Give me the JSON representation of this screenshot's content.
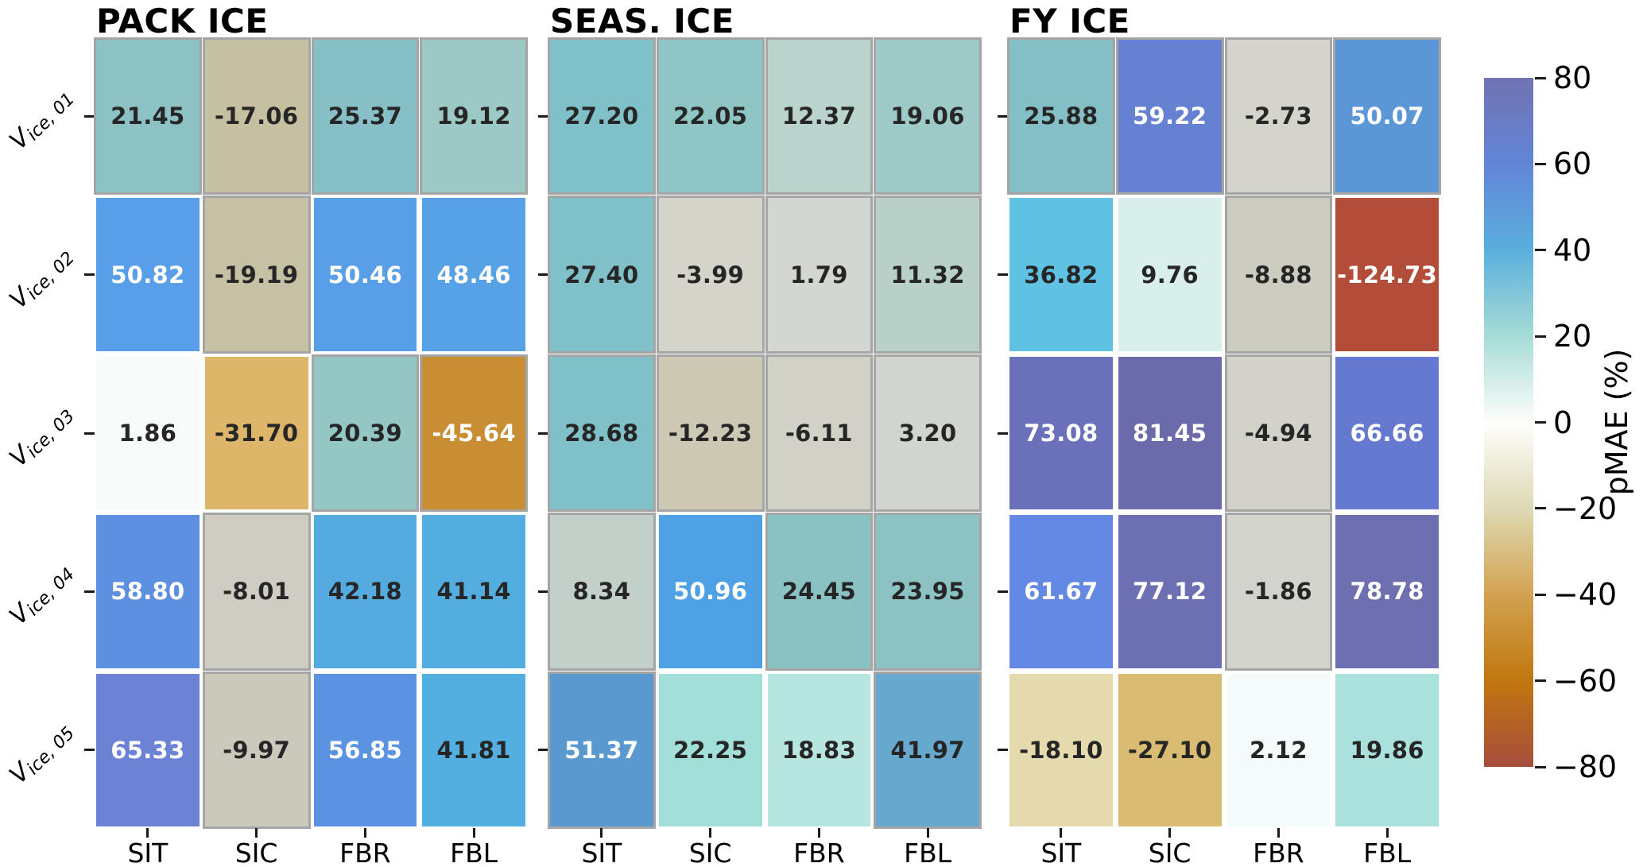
{
  "chart_data": {
    "type": "heatmap",
    "columns": [
      "SIT",
      "SIC",
      "FBR",
      "FBL"
    ],
    "row_labels": [
      {
        "base": "V",
        "sub": "ice, 01"
      },
      {
        "base": "V",
        "sub": "ice, 02"
      },
      {
        "base": "V",
        "sub": "ice, 03"
      },
      {
        "base": "V",
        "sub": "ice, 04"
      },
      {
        "base": "V",
        "sub": "ice, 05"
      }
    ],
    "value_range": [
      -80,
      80
    ],
    "value_decimals": 2,
    "panels": [
      {
        "title": "PACK ICE",
        "values": [
          [
            21.45,
            -17.06,
            25.37,
            19.12
          ],
          [
            50.82,
            -19.19,
            50.46,
            48.46
          ],
          [
            1.86,
            -31.7,
            20.39,
            -45.64
          ],
          [
            58.8,
            -8.01,
            42.18,
            41.14
          ],
          [
            65.33,
            -9.97,
            56.85,
            41.81
          ]
        ],
        "cell_colors": [
          [
            "#8dc2c4",
            "#c6c0a2",
            "#87bfc7",
            "#9cc8c5"
          ],
          [
            "#599ee8",
            "#c6c0a4",
            "#589fe8",
            "#57a2e6"
          ],
          [
            "#f7fbfa",
            "#ddb669",
            "#94c6c3",
            "#c98e33"
          ],
          [
            "#5e90e1",
            "#cfcdc3",
            "#55abdf",
            "#53aedf"
          ],
          [
            "#6c82d4",
            "#cbc9bc",
            "#5b93e2",
            "#53afdf"
          ]
        ],
        "muted": [
          [
            1,
            1,
            1,
            1
          ],
          [
            0,
            1,
            0,
            0
          ],
          [
            0,
            0,
            1,
            1
          ],
          [
            0,
            1,
            0,
            0
          ],
          [
            0,
            1,
            0,
            0
          ]
        ]
      },
      {
        "title": "SEAS. ICE",
        "values": [
          [
            27.2,
            22.05,
            12.37,
            19.06
          ],
          [
            27.4,
            -3.99,
            1.79,
            11.32
          ],
          [
            28.68,
            -12.23,
            -6.11,
            3.2
          ],
          [
            8.34,
            50.96,
            24.45,
            23.95
          ],
          [
            51.37,
            22.25,
            18.83,
            41.97
          ]
        ],
        "cell_colors": [
          [
            "#7fc0c9",
            "#8fc5c4",
            "#bad3cc",
            "#9dc9c6"
          ],
          [
            "#80c0c9",
            "#d5d4cb",
            "#d4d7d1",
            "#b9d0c9"
          ],
          [
            "#7fc0c9",
            "#cdc8b3",
            "#d1d1c8",
            "#d2d5cf"
          ],
          [
            "#c3cfc9",
            "#4fa1e6",
            "#8ac1c3",
            "#8cc2c3"
          ],
          [
            "#5a98d0",
            "#a3dfd9",
            "#b7e5e0",
            "#67a8cf"
          ]
        ],
        "muted": [
          [
            1,
            1,
            1,
            1
          ],
          [
            1,
            1,
            1,
            1
          ],
          [
            1,
            1,
            1,
            1
          ],
          [
            1,
            0,
            1,
            1
          ],
          [
            1,
            0,
            0,
            1
          ]
        ]
      },
      {
        "title": "FY ICE",
        "values": [
          [
            25.88,
            59.22,
            -2.73,
            50.07
          ],
          [
            36.82,
            9.76,
            -8.88,
            -124.73
          ],
          [
            73.08,
            81.45,
            -4.94,
            66.66
          ],
          [
            61.67,
            77.12,
            -1.86,
            78.78
          ],
          [
            -18.1,
            -27.1,
            2.12,
            19.86
          ]
        ],
        "cell_colors": [
          [
            "#85bfc6",
            "#6681d1",
            "#d4d4cc",
            "#5b96d6"
          ],
          [
            "#5fc2e3",
            "#d8efeb",
            "#cdccc0",
            "#b34d39"
          ],
          [
            "#6b70bb",
            "#6b6aab",
            "#d2d2ca",
            "#6579d0"
          ],
          [
            "#6389e4",
            "#6c6fb2",
            "#d3d3cd",
            "#6d6fb1"
          ],
          [
            "#e4daae",
            "#d9bc72",
            "#f5fafa",
            "#abe1dc"
          ]
        ],
        "muted": [
          [
            1,
            1,
            1,
            1
          ],
          [
            0,
            0,
            1,
            0
          ],
          [
            0,
            0,
            1,
            0
          ],
          [
            0,
            0,
            1,
            0
          ],
          [
            0,
            0,
            0,
            0
          ]
        ]
      }
    ],
    "colorbar": {
      "label": "pMAE (%)",
      "ticks": [
        80,
        60,
        40,
        20,
        0,
        -20,
        -40,
        -60,
        -80
      ],
      "tick_labels": [
        "80",
        "60",
        "40",
        "20",
        "0",
        "−20",
        "−40",
        "−60",
        "−80"
      ],
      "gradient_stops": [
        {
          "v": 80,
          "color": "#7173b2"
        },
        {
          "v": 60,
          "color": "#6285d8"
        },
        {
          "v": 40,
          "color": "#5aafdc"
        },
        {
          "v": 20,
          "color": "#a6dcd6"
        },
        {
          "v": 0,
          "color": "#fefefc"
        },
        {
          "v": -20,
          "color": "#ded9b4"
        },
        {
          "v": -40,
          "color": "#d2a251"
        },
        {
          "v": -60,
          "color": "#c0770f"
        },
        {
          "v": -80,
          "color": "#a54e3d"
        }
      ]
    },
    "text_colors": {
      "dark": "#262626",
      "light": "#ffffff"
    },
    "muted_outline_color": "#a5a5a5"
  }
}
